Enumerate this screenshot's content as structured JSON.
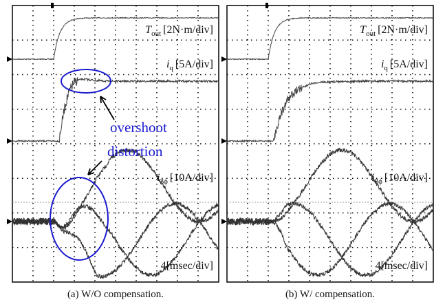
{
  "panels": [
    {
      "caption": "(a) W/O compensation.",
      "torque_label": {
        "symbol": "T",
        "subscript": "out",
        "scale": "[2N·m/div]"
      },
      "iq_label": {
        "symbol": "i",
        "subscript": "q",
        "scale": "[5A/div]"
      },
      "phase_label": {
        "symbol": "i",
        "subscript": "3ϕ",
        "scale": "[10A/div]"
      },
      "time_scale": "4[msec/div]",
      "annotations": [
        "overshoot",
        "distortion"
      ]
    },
    {
      "caption": "(b) W/ compensation.",
      "torque_label": {
        "symbol": "T",
        "subscript": "out",
        "scale": "[2N·m/div]"
      },
      "iq_label": {
        "symbol": "i",
        "subscript": "q",
        "scale": "[5A/div]"
      },
      "phase_label": {
        "symbol": "i",
        "subscript": "3ϕ",
        "scale": "[10A/div]"
      },
      "time_scale": "4[msec/div]"
    }
  ]
}
